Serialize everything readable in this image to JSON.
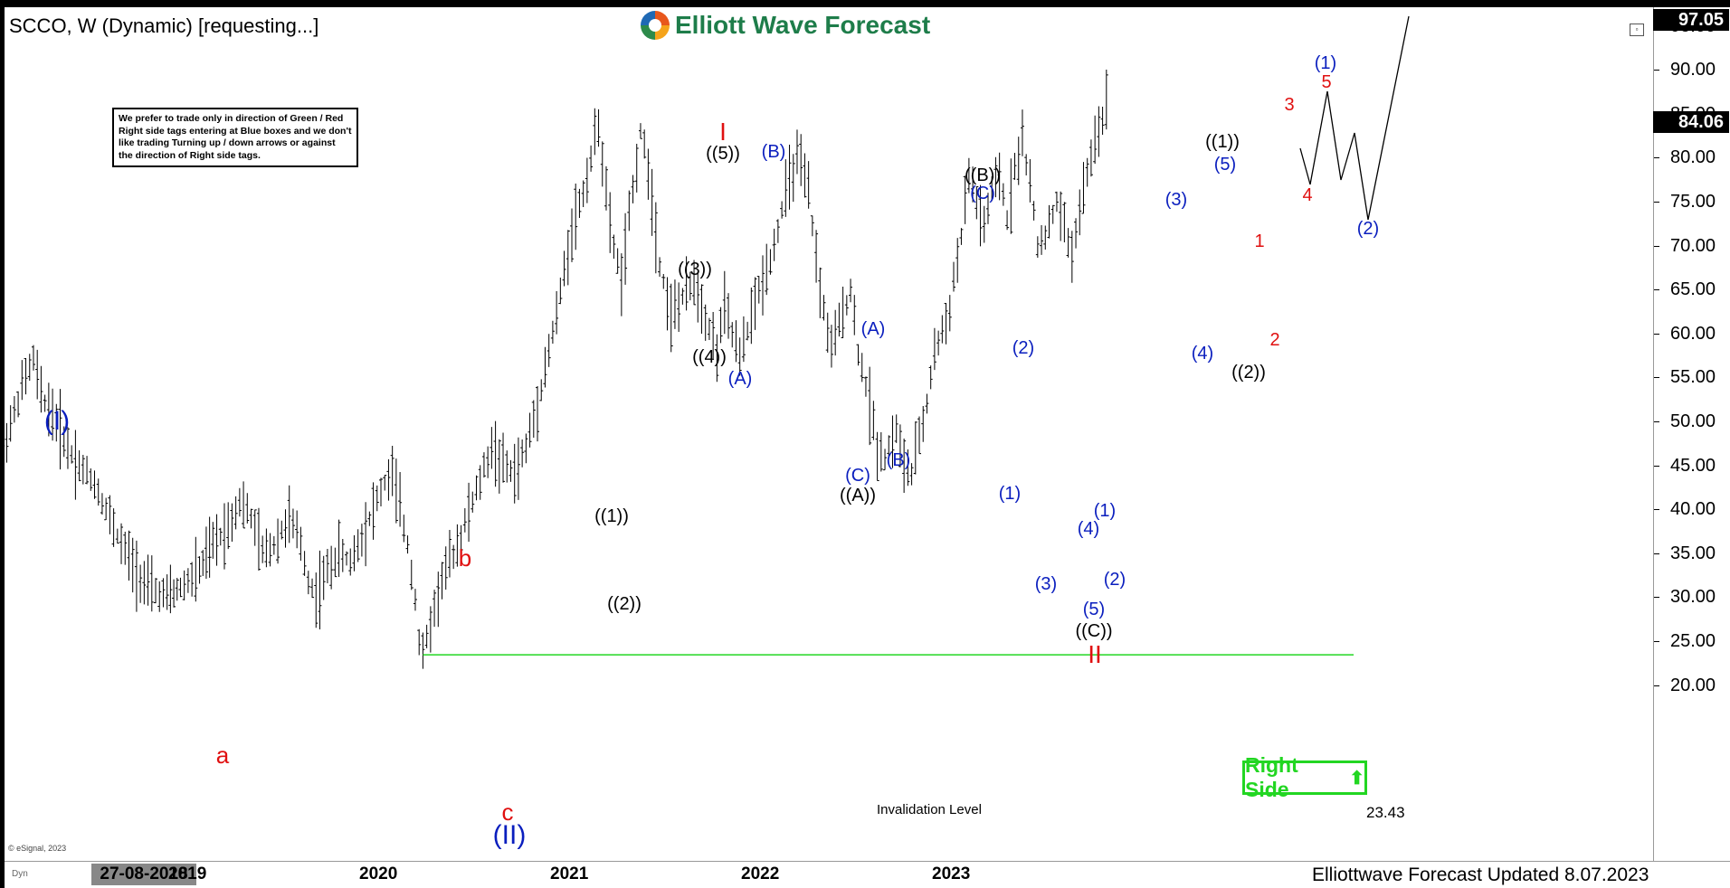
{
  "header": {
    "symbol_title": "SCCO, W (Dynamic) [requesting...]",
    "brand": "Elliott Wave Forecast"
  },
  "note": "We prefer to trade only in direction of Green / Red Right side tags entering at Blue boxes and we don't like trading Turning up / down arrows or against the direction of Right side tags.",
  "right_side_tag": {
    "label": "Right Side",
    "arrow": "⬆",
    "color": "#22d622"
  },
  "invalidation": {
    "label": "Invalidation Level",
    "value": "23.43",
    "level": 23.43,
    "color": "#22d622"
  },
  "footer": {
    "updated_text": "Elliottwave Forecast Updated 8.07.2023",
    "cursor_date": "27-08-2018",
    "esignal": "© eSignal, 2023",
    "dyn": "Dyn"
  },
  "price_scale": {
    "last_price": "84.06",
    "top_price": "97.05"
  },
  "colors": {
    "black": "#000000",
    "blue": "#0a1ebe",
    "red": "#e01010",
    "green": "#22d622"
  },
  "chart_data": {
    "type": "ohlc-bar",
    "title": "SCCO, W (Dynamic)",
    "ylim": [
      18,
      97.05
    ],
    "y_ticks": [
      "20.00",
      "25.00",
      "30.00",
      "35.00",
      "40.00",
      "45.00",
      "50.00",
      "55.00",
      "60.00",
      "65.00",
      "70.00",
      "75.00",
      "80.00",
      "85.00",
      "90.00",
      "95.00"
    ],
    "x_ticks": [
      {
        "label": "2019",
        "t": 2019.0
      },
      {
        "label": "2020",
        "t": 2020.0
      },
      {
        "label": "2021",
        "t": 2021.0
      },
      {
        "label": "2022",
        "t": 2022.0
      },
      {
        "label": "2023",
        "t": 2023.0
      }
    ],
    "x_range": [
      2018.02,
      2024.02
    ],
    "price_path": [
      [
        2018.02,
        47
      ],
      [
        2018.08,
        51
      ],
      [
        2018.12,
        54
      ],
      [
        2018.18,
        57
      ],
      [
        2018.22,
        53
      ],
      [
        2018.3,
        50
      ],
      [
        2018.36,
        47
      ],
      [
        2018.42,
        45
      ],
      [
        2018.5,
        43
      ],
      [
        2018.56,
        40
      ],
      [
        2018.64,
        36
      ],
      [
        2018.72,
        33
      ],
      [
        2018.78,
        31
      ],
      [
        2018.88,
        30
      ],
      [
        2018.95,
        31
      ],
      [
        2019.05,
        33
      ],
      [
        2019.12,
        36
      ],
      [
        2019.2,
        38
      ],
      [
        2019.26,
        41
      ],
      [
        2019.32,
        39
      ],
      [
        2019.38,
        35
      ],
      [
        2019.44,
        36
      ],
      [
        2019.52,
        39
      ],
      [
        2019.58,
        36
      ],
      [
        2019.62,
        32
      ],
      [
        2019.66,
        30
      ],
      [
        2019.72,
        33
      ],
      [
        2019.78,
        35
      ],
      [
        2019.84,
        34
      ],
      [
        2019.9,
        37
      ],
      [
        2019.96,
        40
      ],
      [
        2020.02,
        43
      ],
      [
        2020.06,
        44
      ],
      [
        2020.1,
        40
      ],
      [
        2020.14,
        36
      ],
      [
        2020.18,
        30
      ],
      [
        2020.2,
        25
      ],
      [
        2020.22,
        23.43
      ],
      [
        2020.26,
        27
      ],
      [
        2020.32,
        32
      ],
      [
        2020.4,
        36
      ],
      [
        2020.5,
        42
      ],
      [
        2020.58,
        47
      ],
      [
        2020.64,
        45
      ],
      [
        2020.7,
        44
      ],
      [
        2020.76,
        47
      ],
      [
        2020.82,
        52
      ],
      [
        2020.88,
        58
      ],
      [
        2020.92,
        62
      ],
      [
        2020.96,
        67
      ],
      [
        2021.0,
        72
      ],
      [
        2021.06,
        76
      ],
      [
        2021.1,
        80
      ],
      [
        2021.14,
        84
      ],
      [
        2021.2,
        72
      ],
      [
        2021.26,
        66
      ],
      [
        2021.3,
        73
      ],
      [
        2021.36,
        83
      ],
      [
        2021.4,
        79
      ],
      [
        2021.46,
        68
      ],
      [
        2021.52,
        62
      ],
      [
        2021.58,
        64
      ],
      [
        2021.64,
        66
      ],
      [
        2021.7,
        62
      ],
      [
        2021.76,
        58
      ],
      [
        2021.8,
        63
      ],
      [
        2021.84,
        60
      ],
      [
        2021.88,
        57
      ],
      [
        2021.94,
        62
      ],
      [
        2022.0,
        66
      ],
      [
        2022.06,
        70
      ],
      [
        2022.12,
        76
      ],
      [
        2022.18,
        80
      ],
      [
        2022.24,
        76
      ],
      [
        2022.3,
        65
      ],
      [
        2022.36,
        58
      ],
      [
        2022.4,
        61
      ],
      [
        2022.46,
        65
      ],
      [
        2022.5,
        58
      ],
      [
        2022.56,
        52
      ],
      [
        2022.6,
        47
      ],
      [
        2022.64,
        46
      ],
      [
        2022.7,
        49
      ],
      [
        2022.74,
        45
      ],
      [
        2022.78,
        44
      ],
      [
        2022.82,
        48
      ],
      [
        2022.86,
        52
      ],
      [
        2022.9,
        58
      ],
      [
        2022.94,
        60
      ],
      [
        2022.98,
        63
      ],
      [
        2023.0,
        66
      ],
      [
        2023.04,
        71
      ],
      [
        2023.08,
        78
      ],
      [
        2023.12,
        75
      ],
      [
        2023.16,
        72
      ],
      [
        2023.2,
        76
      ],
      [
        2023.24,
        78
      ],
      [
        2023.28,
        73
      ],
      [
        2023.32,
        79
      ],
      [
        2023.36,
        82
      ],
      [
        2023.4,
        77
      ],
      [
        2023.44,
        70
      ],
      [
        2023.5,
        72
      ],
      [
        2023.54,
        75
      ],
      [
        2023.58,
        72
      ],
      [
        2023.62,
        69
      ],
      [
        2023.66,
        74
      ],
      [
        2023.7,
        78
      ],
      [
        2023.74,
        82
      ],
      [
        2023.8,
        86
      ],
      [
        2023.82,
        84.06
      ]
    ],
    "projection": [
      [
        1437,
        164
      ],
      [
        1448,
        204
      ],
      [
        1467,
        101
      ],
      [
        1482,
        199
      ],
      [
        1497,
        147
      ],
      [
        1512,
        243
      ],
      [
        1557,
        18
      ]
    ],
    "wave_labels": [
      {
        "text": "(I)",
        "color": "blue",
        "size": 30,
        "pos": [
          63,
          466
        ]
      },
      {
        "text": "a",
        "color": "red",
        "size": 26,
        "pos": [
          246,
          835
        ]
      },
      {
        "text": "b",
        "color": "red",
        "size": 26,
        "pos": [
          514,
          617
        ]
      },
      {
        "text": "c",
        "color": "red",
        "size": 26,
        "pos": [
          561,
          898
        ]
      },
      {
        "text": "(II)",
        "color": "blue",
        "size": 30,
        "pos": [
          563,
          924
        ]
      },
      {
        "text": "((1))",
        "color": "black",
        "size": 20,
        "pos": [
          676,
          571
        ]
      },
      {
        "text": "((2))",
        "color": "black",
        "size": 20,
        "pos": [
          690,
          668
        ]
      },
      {
        "text": "((3))",
        "color": "black",
        "size": 20,
        "pos": [
          768,
          298
        ]
      },
      {
        "text": "((4))",
        "color": "black",
        "size": 20,
        "pos": [
          784,
          395
        ]
      },
      {
        "text": "((5))",
        "color": "black",
        "size": 20,
        "pos": [
          799,
          170
        ]
      },
      {
        "text": "I",
        "color": "red",
        "size": 28,
        "pos": [
          799,
          146
        ]
      },
      {
        "text": "(A)",
        "color": "blue",
        "size": 20,
        "pos": [
          818,
          419
        ]
      },
      {
        "text": "(B)",
        "color": "blue",
        "size": 20,
        "pos": [
          855,
          168
        ]
      },
      {
        "text": "(A)",
        "color": "blue",
        "size": 20,
        "pos": [
          965,
          364
        ]
      },
      {
        "text": "(B)",
        "color": "blue",
        "size": 20,
        "pos": [
          993,
          509
        ]
      },
      {
        "text": "(C)",
        "color": "blue",
        "size": 20,
        "pos": [
          948,
          526
        ]
      },
      {
        "text": "((A))",
        "color": "black",
        "size": 20,
        "pos": [
          948,
          548
        ]
      },
      {
        "text": "((B))",
        "color": "black",
        "size": 20,
        "pos": [
          1086,
          194
        ]
      },
      {
        "text": "(C)",
        "color": "blue",
        "size": 20,
        "pos": [
          1086,
          214
        ]
      },
      {
        "text": "(1)",
        "color": "blue",
        "size": 20,
        "pos": [
          1116,
          546
        ]
      },
      {
        "text": "(2)",
        "color": "blue",
        "size": 20,
        "pos": [
          1131,
          385
        ]
      },
      {
        "text": "(3)",
        "color": "blue",
        "size": 20,
        "pos": [
          1156,
          646
        ]
      },
      {
        "text": "(4)",
        "color": "blue",
        "size": 20,
        "pos": [
          1203,
          585
        ]
      },
      {
        "text": "(1)",
        "color": "blue",
        "size": 20,
        "pos": [
          1221,
          565
        ]
      },
      {
        "text": "(2)",
        "color": "blue",
        "size": 20,
        "pos": [
          1232,
          641
        ]
      },
      {
        "text": "(5)",
        "color": "blue",
        "size": 20,
        "pos": [
          1209,
          674
        ]
      },
      {
        "text": "((C))",
        "color": "black",
        "size": 20,
        "pos": [
          1209,
          698
        ]
      },
      {
        "text": "II",
        "color": "red",
        "size": 28,
        "pos": [
          1210,
          724
        ]
      },
      {
        "text": "(3)",
        "color": "blue",
        "size": 20,
        "pos": [
          1300,
          221
        ]
      },
      {
        "text": "(4)",
        "color": "blue",
        "size": 20,
        "pos": [
          1329,
          391
        ]
      },
      {
        "text": "((1))",
        "color": "black",
        "size": 20,
        "pos": [
          1351,
          157
        ]
      },
      {
        "text": "(5)",
        "color": "blue",
        "size": 20,
        "pos": [
          1354,
          182
        ]
      },
      {
        "text": "((2))",
        "color": "black",
        "size": 20,
        "pos": [
          1380,
          412
        ]
      },
      {
        "text": "1",
        "color": "red",
        "size": 20,
        "pos": [
          1392,
          267
        ]
      },
      {
        "text": "2",
        "color": "red",
        "size": 20,
        "pos": [
          1409,
          376
        ]
      },
      {
        "text": "3",
        "color": "red",
        "size": 20,
        "pos": [
          1425,
          116
        ]
      },
      {
        "text": "4",
        "color": "red",
        "size": 20,
        "pos": [
          1445,
          216
        ]
      },
      {
        "text": "(1)",
        "color": "blue",
        "size": 20,
        "pos": [
          1465,
          70
        ]
      },
      {
        "text": "5",
        "color": "red",
        "size": 20,
        "pos": [
          1466,
          91
        ]
      },
      {
        "text": "(2)",
        "color": "blue",
        "size": 20,
        "pos": [
          1512,
          253
        ]
      }
    ]
  }
}
